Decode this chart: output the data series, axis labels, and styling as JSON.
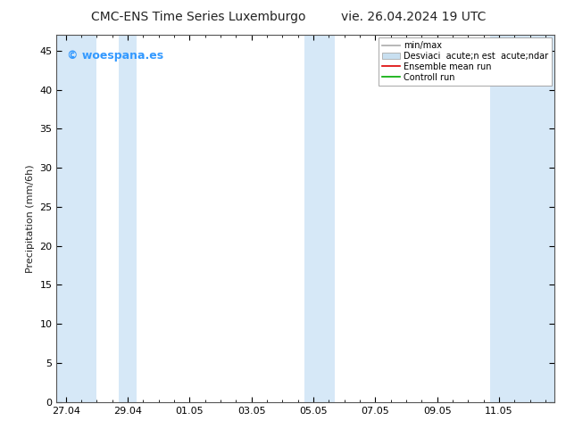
{
  "title": "CMC-ENS Time Series Luxemburgo",
  "title2": "vie. 26.04.2024 19 UTC",
  "ylabel": "Precipitation (mm/6h)",
  "ylim": [
    0,
    47
  ],
  "yticks": [
    0,
    5,
    10,
    15,
    20,
    25,
    30,
    35,
    40,
    45
  ],
  "xlim_start": -0.3,
  "xlim_end": 15.8,
  "xtick_labels": [
    "27.04",
    "29.04",
    "01.05",
    "03.05",
    "05.05",
    "07.05",
    "09.05",
    "11.05"
  ],
  "xtick_positions": [
    0,
    2,
    4,
    6,
    8,
    10,
    12,
    14
  ],
  "shaded_bands": [
    [
      -0.3,
      1.0
    ],
    [
      1.7,
      2.3
    ],
    [
      7.7,
      8.7
    ],
    [
      13.7,
      15.8
    ]
  ],
  "shade_color": "#d6e8f7",
  "background_color": "#ffffff",
  "plot_bg_color": "#ffffff",
  "watermark_text": "© woespana.es",
  "watermark_color": "#3399ff",
  "legend_minmax_color": "#aaaaaa",
  "legend_std_facecolor": "#c8dff0",
  "legend_std_edgecolor": "#aaaaaa",
  "legend_ensemble_color": "#dd0000",
  "legend_control_color": "#00aa00",
  "title_fontsize": 10,
  "axis_label_fontsize": 8,
  "tick_fontsize": 8,
  "title_color": "#222222",
  "spine_color": "#555555",
  "legend_label_minmax": "min/max",
  "legend_label_std": "Desviaci  acute;n est  acute;ndar",
  "legend_label_ens": "Ensemble mean run",
  "legend_label_ctrl": "Controll run"
}
